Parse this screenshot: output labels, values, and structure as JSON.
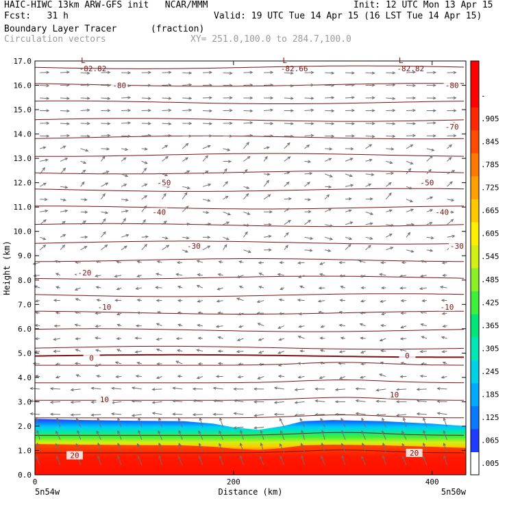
{
  "header": {
    "line1_left": "HAIC-HIWC 13km ARW-GFS init   NCAR/MMM",
    "line1_right": "Init: 12 UTC Mon 13 Apr 15",
    "line2_left": "Fcst:   31 h",
    "line2_right": "Valid: 19 UTC Tue 14 Apr 15 (16 LST Tue 14 Apr 15)",
    "field_name": "Boundary Layer Tracer",
    "field_units": "(fraction)",
    "vector_label": "Circulation vectors",
    "xsec_coords": "XY= 251.0,100.0 to 284.7,100.0"
  },
  "chart_data": {
    "type": "heatmap",
    "xlabel": "Distance (km)",
    "ylabel": "Height (km)",
    "xlim": [
      0,
      434
    ],
    "ylim": [
      0,
      17
    ],
    "x_ticks": [
      "0",
      "200",
      "400"
    ],
    "x_tick_values": [
      0,
      200,
      400
    ],
    "x_end_labels": [
      "5n54w",
      "5n50w"
    ],
    "y_ticks": [
      "0.0",
      "1.0",
      "2.0",
      "3.0",
      "4.0",
      "5.0",
      "6.0",
      "7.0",
      "8.0",
      "9.0",
      "10.0",
      "11.0",
      "12.0",
      "13.0",
      "14.0",
      "15.0",
      "16.0",
      "17.0"
    ],
    "colorbar": {
      "labels": [
        ".005",
        ".065",
        ".125",
        ".185",
        ".245",
        ".305",
        ".365",
        ".425",
        ".485",
        ".545",
        ".605",
        ".665",
        ".725",
        ".785",
        ".845",
        ".905",
        "-"
      ],
      "colors": [
        "#ffffff",
        "#1e3cff",
        "#0a78ff",
        "#00aaff",
        "#00d2e6",
        "#00e6b4",
        "#00e678",
        "#3cf03c",
        "#8cf028",
        "#d2f014",
        "#fff000",
        "#ffc800",
        "#ffa000",
        "#ff7800",
        "#ff4b00",
        "#ff2800",
        "#ff0000",
        "#ff0000"
      ]
    },
    "tracer_top_km": {
      "x": [
        0,
        50,
        100,
        150,
        180,
        200,
        225,
        250,
        270,
        300,
        350,
        400,
        434
      ],
      "height": [
        2.3,
        2.25,
        2.22,
        2.2,
        2.1,
        1.95,
        1.85,
        2.0,
        2.2,
        2.25,
        2.2,
        2.1,
        2.0
      ]
    },
    "temperature_contours": {
      "label_values": [
        "-80",
        "-70",
        "-50",
        "-40",
        "-30",
        "-20",
        "-10",
        "0",
        "10",
        "20"
      ],
      "labels": [
        {
          "text": "-80",
          "x": 85,
          "y": 16.0
        },
        {
          "text": "-80",
          "x": 420,
          "y": 16.0
        },
        {
          "text": "-70",
          "x": 420,
          "y": 14.3
        },
        {
          "text": "-50",
          "x": 130,
          "y": 12.0
        },
        {
          "text": "-50",
          "x": 395,
          "y": 12.0
        },
        {
          "text": "-40",
          "x": 125,
          "y": 10.8
        },
        {
          "text": "-40",
          "x": 410,
          "y": 10.8
        },
        {
          "text": "-30",
          "x": 160,
          "y": 9.4
        },
        {
          "text": "-30",
          "x": 425,
          "y": 9.4
        },
        {
          "text": "-20",
          "x": 50,
          "y": 8.3
        },
        {
          "text": "-10",
          "x": 70,
          "y": 6.9
        },
        {
          "text": "-10",
          "x": 415,
          "y": 6.9
        },
        {
          "text": "0",
          "x": 57,
          "y": 4.8
        },
        {
          "text": "0",
          "x": 375,
          "y": 4.9
        },
        {
          "text": "10",
          "x": 70,
          "y": 3.1
        },
        {
          "text": "10",
          "x": 362,
          "y": 3.3
        },
        {
          "text": "20",
          "x": 40,
          "y": 0.8
        },
        {
          "text": "20",
          "x": 382,
          "y": 0.9
        }
      ],
      "lows": [
        {
          "label": "L",
          "value": "-82.82",
          "x": 50,
          "y": 16.8
        },
        {
          "label": "L",
          "value": "-82.66",
          "x": 253,
          "y": 16.8
        },
        {
          "label": "L",
          "value": "-82.82",
          "x": 370,
          "y": 16.8
        }
      ]
    }
  }
}
